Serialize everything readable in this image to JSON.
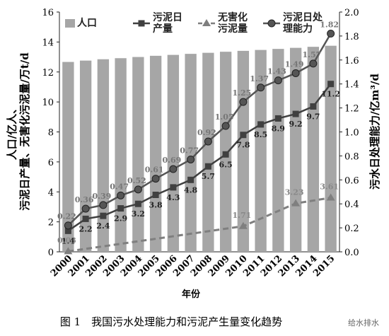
{
  "chart_data": {
    "type": "bar_line",
    "caption": "图 1　我国污水处理能力和污泥产生量变化趋势",
    "watermark": "给水排水",
    "xlabel": "年份",
    "ylabel": [
      "人口/亿人、",
      "污泥日产量、无害化污泥量/万t/d"
    ],
    "y2label": "污水日处理能力/亿m³/d",
    "x": [
      2000,
      2001,
      2002,
      2003,
      2004,
      2005,
      2006,
      2007,
      2008,
      2009,
      2010,
      2011,
      2012,
      2013,
      2014,
      2015
    ],
    "ylim": [
      0,
      16
    ],
    "yticks": [
      0,
      2,
      4,
      6,
      8,
      10,
      12,
      14,
      16
    ],
    "y2lim": [
      0,
      2
    ],
    "y2ticks": [
      {
        "value": 0,
        "label": "0.0"
      },
      0.2,
      0.4,
      0.6,
      0.8,
      {
        "value": 1,
        "label": "1.0"
      },
      1.2,
      1.4,
      1.6,
      1.8,
      {
        "value": 2,
        "label": "2.0"
      }
    ],
    "series": [
      {
        "name": "人口",
        "type": "bar",
        "color": "#a6a6a6",
        "values": [
          12.67,
          12.76,
          12.85,
          12.92,
          13.0,
          13.08,
          13.14,
          13.21,
          13.28,
          13.35,
          13.41,
          13.47,
          13.54,
          13.61,
          13.68,
          13.75
        ]
      },
      {
        "name": "污泥日产量",
        "type": "line",
        "marker": "square",
        "color": "#404040",
        "values": [
          1.4,
          2.2,
          2.4,
          2.9,
          3.2,
          3.8,
          4.3,
          4.8,
          5.7,
          6.5,
          7.8,
          8.5,
          8.9,
          9.2,
          9.7,
          11.2
        ]
      },
      {
        "name": "无害化污泥量",
        "type": "line",
        "marker": "triangle",
        "dash": true,
        "color": "#7f7f7f",
        "x": [
          2000,
          2010,
          2013,
          2015
        ],
        "values": [
          0.03,
          1.71,
          3.23,
          3.61
        ]
      },
      {
        "name": "污泥日处理能力",
        "type": "line",
        "marker": "circle",
        "axis": "y2",
        "color": "#555555",
        "values": [
          0.22,
          0.36,
          0.39,
          0.47,
          0.52,
          0.61,
          0.69,
          0.77,
          0.92,
          1.05,
          1.25,
          1.37,
          1.43,
          1.49,
          1.57,
          1.82
        ]
      }
    ]
  }
}
